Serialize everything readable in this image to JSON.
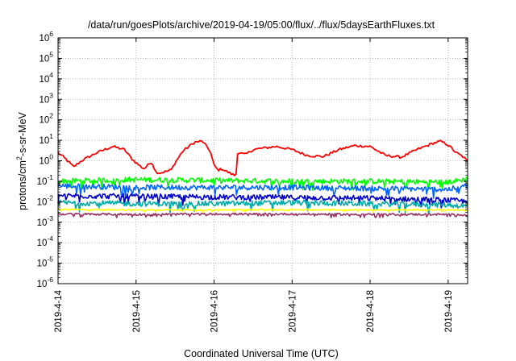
{
  "chart_data": {
    "type": "line",
    "title": "/data/run/goesPlots/archive/2019-04-19/05:00/flux/../flux/5daysEarthFluxes.txt",
    "xlabel": "Coordinated Universal Time (UTC)",
    "ylabel_main": "protons/cm",
    "ylabel_sup": "2",
    "ylabel_tail": "-s-sr-MeV",
    "yscale": "log",
    "ylim_exp": [
      -6,
      6
    ],
    "xlim_days": [
      0,
      5.25
    ],
    "y_ticks": [
      {
        "exp": -6,
        "base": "10",
        "sup": "-6"
      },
      {
        "exp": -5,
        "base": "10",
        "sup": "-5"
      },
      {
        "exp": -4,
        "base": "10",
        "sup": "-4"
      },
      {
        "exp": -3,
        "base": "10",
        "sup": "-3"
      },
      {
        "exp": -2,
        "base": "10",
        "sup": "-2"
      },
      {
        "exp": -1,
        "base": "10",
        "sup": "-1"
      },
      {
        "exp": 0,
        "base": "10",
        "sup": "0"
      },
      {
        "exp": 1,
        "base": "10",
        "sup": "1"
      },
      {
        "exp": 2,
        "base": "10",
        "sup": "2"
      },
      {
        "exp": 3,
        "base": "10",
        "sup": "3"
      },
      {
        "exp": 4,
        "base": "10",
        "sup": "4"
      },
      {
        "exp": 5,
        "base": "10",
        "sup": "5"
      },
      {
        "exp": 6,
        "base": "10",
        "sup": "6"
      }
    ],
    "x_ticks": [
      {
        "day": 0,
        "label": "2019-4-14"
      },
      {
        "day": 1,
        "label": "2019-4-15"
      },
      {
        "day": 2,
        "label": "2019-4-16"
      },
      {
        "day": 3,
        "label": "2019-4-17"
      },
      {
        "day": 4,
        "label": "2019-4-18"
      },
      {
        "day": 5,
        "label": "2019-4-19"
      }
    ],
    "grid": true,
    "series": [
      {
        "color": "#ff0000",
        "x": [
          0,
          0.1,
          0.2,
          0.3,
          0.5,
          0.7,
          0.85,
          0.95,
          1.0,
          1.1,
          1.2,
          1.25,
          1.3,
          1.45,
          1.5,
          1.6,
          1.75,
          1.85,
          1.95,
          2.0,
          2.05,
          2.1,
          2.2,
          2.28,
          2.3,
          2.4,
          2.5,
          2.6,
          2.8,
          3.0,
          3.2,
          3.4,
          3.6,
          3.8,
          4.0,
          4.2,
          4.4,
          4.6,
          4.8,
          4.9,
          5.0,
          5.1,
          5.2,
          5.25
        ],
        "y": [
          2.5,
          1.2,
          0.5,
          1.0,
          2.5,
          5.0,
          3.5,
          1.2,
          0.8,
          0.4,
          0.9,
          0.3,
          0.25,
          0.35,
          0.8,
          3.0,
          8.0,
          9.0,
          3.0,
          0.6,
          0.35,
          0.4,
          0.25,
          0.18,
          2.5,
          2.0,
          3.5,
          4.0,
          5.0,
          3.5,
          1.8,
          1.6,
          3.5,
          5.5,
          5.0,
          1.8,
          1.5,
          3.5,
          7.0,
          9.0,
          6.0,
          2.5,
          1.5,
          0.9
        ]
      },
      {
        "color": "#00ff00",
        "x": [
          0,
          1,
          2,
          3,
          4,
          5,
          5.25
        ],
        "y": [
          0.1,
          0.12,
          0.11,
          0.1,
          0.1,
          0.09,
          0.13
        ]
      },
      {
        "color": "#0066ff",
        "x": [
          0,
          1,
          2,
          3,
          4,
          5,
          5.25
        ],
        "y": [
          0.06,
          0.05,
          0.05,
          0.05,
          0.045,
          0.04,
          0.06
        ]
      },
      {
        "color": "#0000cc",
        "x": [
          0,
          1,
          2,
          3,
          4,
          5,
          5.25
        ],
        "y": [
          0.02,
          0.018,
          0.017,
          0.016,
          0.015,
          0.012,
          0.01
        ]
      },
      {
        "color": "#00aaaa",
        "x": [
          0,
          1,
          2,
          3,
          4,
          5,
          5.25
        ],
        "y": [
          0.009,
          0.008,
          0.008,
          0.009,
          0.008,
          0.007,
          0.006
        ]
      },
      {
        "color": "#ffff00",
        "x": [
          0,
          1,
          2,
          3,
          4,
          5,
          5.25
        ],
        "y": [
          0.0042,
          0.004,
          0.004,
          0.0041,
          0.004,
          0.004,
          0.0038
        ]
      },
      {
        "color": "#993366",
        "x": [
          0,
          1,
          2,
          3,
          4,
          5,
          5.25
        ],
        "y": [
          0.0025,
          0.0024,
          0.0025,
          0.0025,
          0.0024,
          0.0024,
          0.0023
        ]
      }
    ]
  }
}
